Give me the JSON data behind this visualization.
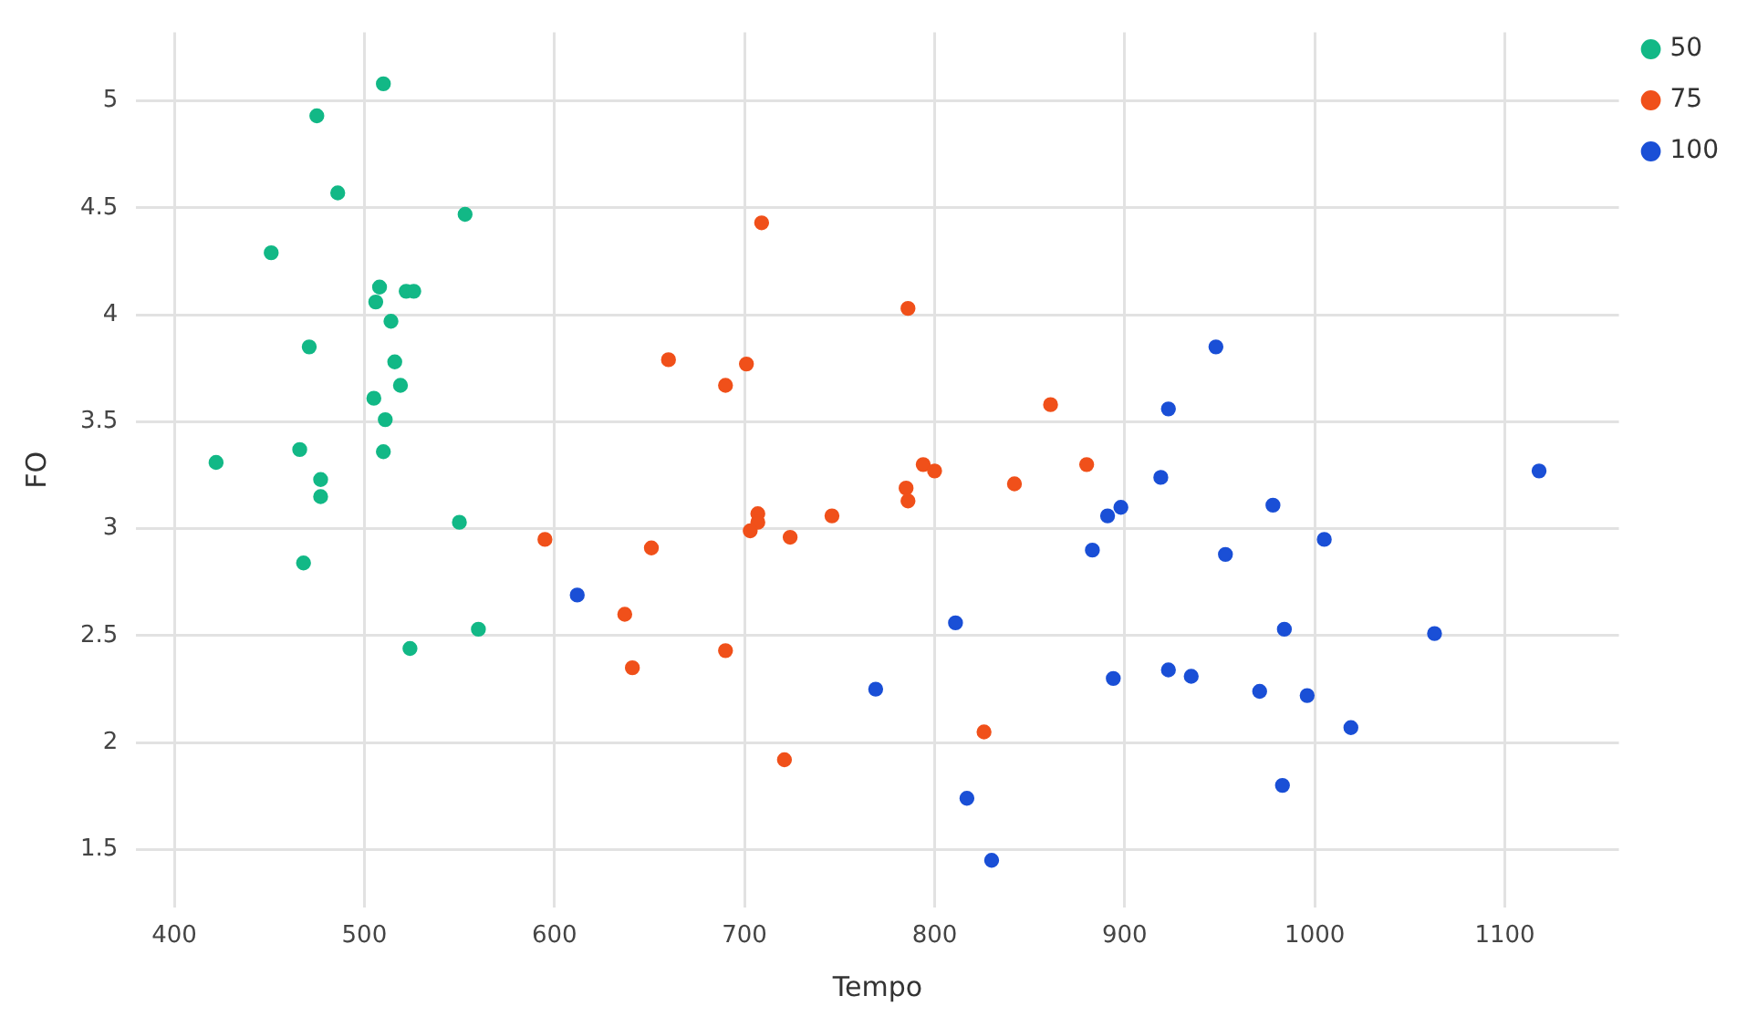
{
  "chart_data": {
    "type": "scatter",
    "xlabel": "Tempo",
    "ylabel": "FO",
    "xlim": [
      380,
      1160
    ],
    "xticks": [
      400,
      500,
      600,
      700,
      800,
      900,
      1000,
      1100
    ],
    "ylim": [
      1.23,
      5.32
    ],
    "yticks": [
      1.5,
      2,
      2.5,
      3,
      3.5,
      4,
      4.5,
      5
    ],
    "grid": true,
    "legend": "top right",
    "marker": "circle",
    "series": [
      {
        "name": "50",
        "color": "#12b886",
        "x": [
          510,
          475,
          486,
          553,
          451,
          508,
          522,
          526,
          506,
          514,
          471,
          516,
          519,
          505,
          511,
          466,
          510,
          422,
          477,
          477,
          550,
          468,
          560,
          524
        ],
        "values": [
          5.08,
          4.93,
          4.57,
          4.47,
          4.29,
          4.13,
          4.11,
          4.11,
          4.06,
          3.97,
          3.85,
          3.78,
          3.67,
          3.61,
          3.51,
          3.37,
          3.36,
          3.31,
          3.23,
          3.15,
          3.03,
          2.84,
          2.53,
          2.44
        ]
      },
      {
        "name": "75",
        "color": "#f0501a",
        "x": [
          709,
          786,
          660,
          701,
          690,
          861,
          794,
          880,
          800,
          842,
          785,
          786,
          707,
          707,
          746,
          703,
          724,
          595,
          651,
          637,
          641,
          690,
          826,
          721
        ],
        "values": [
          4.43,
          4.03,
          3.79,
          3.77,
          3.67,
          3.58,
          3.3,
          3.3,
          3.27,
          3.21,
          3.19,
          3.13,
          3.07,
          3.03,
          3.06,
          2.99,
          2.96,
          2.95,
          2.91,
          2.6,
          2.35,
          2.43,
          2.05,
          1.92
        ]
      },
      {
        "name": "100",
        "color": "#1a4fd6",
        "x": [
          948,
          923,
          1118,
          919,
          978,
          898,
          891,
          1005,
          883,
          953,
          612,
          811,
          984,
          1063,
          894,
          923,
          935,
          971,
          769,
          996,
          1019,
          983,
          817,
          830
        ],
        "values": [
          3.85,
          3.56,
          3.27,
          3.24,
          3.11,
          3.1,
          3.06,
          2.95,
          2.9,
          2.88,
          2.69,
          2.56,
          2.53,
          2.51,
          2.3,
          2.34,
          2.31,
          2.24,
          2.25,
          2.22,
          2.07,
          1.8,
          1.74,
          1.45
        ]
      }
    ]
  }
}
